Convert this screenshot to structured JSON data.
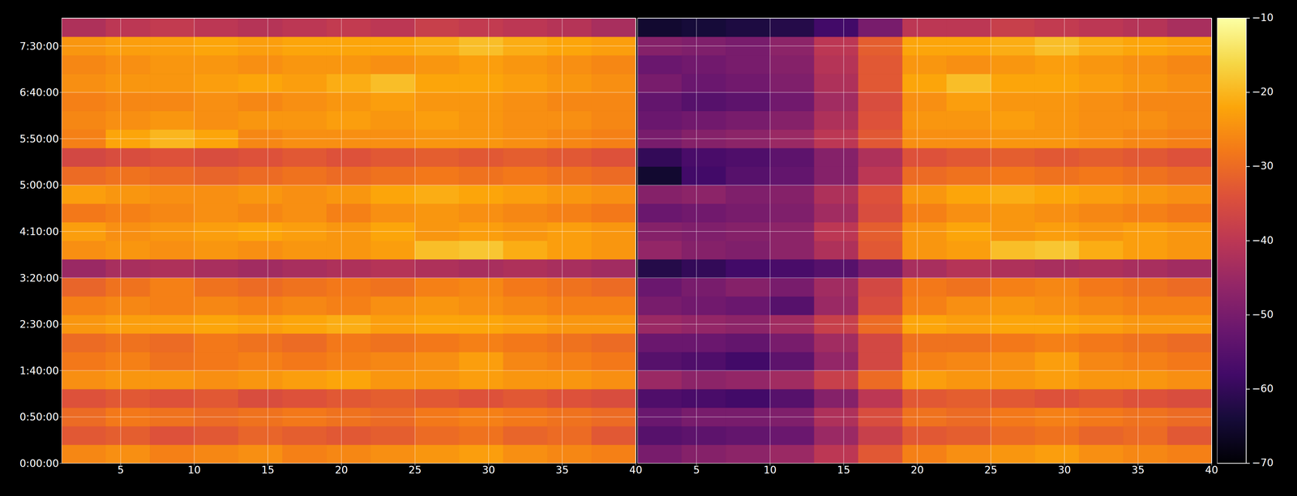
{
  "chart_data": [
    {
      "type": "heatmap",
      "x": [
        1,
        4,
        7,
        10,
        13,
        16,
        19,
        22,
        25,
        28,
        31,
        34,
        37,
        40
      ],
      "y": [
        0,
        1200,
        2400,
        3600,
        4800,
        6000,
        7200,
        8400,
        9600,
        10800,
        12000,
        13200,
        14400,
        15600,
        16800,
        18000,
        19200,
        20400,
        21600,
        22800,
        24000,
        25200,
        26400,
        27600,
        28800
      ],
      "values": [
        [
          -26,
          -25,
          -27,
          -26,
          -25,
          -27,
          -26,
          -25,
          -24,
          -23,
          -25,
          -26,
          -27
        ],
        [
          -33,
          -32,
          -34,
          -33,
          -31,
          -32,
          -33,
          -32,
          -30,
          -29,
          -31,
          -30,
          -33
        ],
        [
          -30,
          -28,
          -29,
          -30,
          -29,
          -28,
          -29,
          -30,
          -28,
          -27,
          -28,
          -29,
          -30
        ],
        [
          -34,
          -33,
          -34,
          -33,
          -35,
          -34,
          -33,
          -32,
          -33,
          -34,
          -33,
          -34,
          -35
        ],
        [
          -25,
          -24,
          -24,
          -25,
          -24,
          -23,
          -22,
          -24,
          -24,
          -23,
          -24,
          -24,
          -25
        ],
        [
          -28,
          -27,
          -29,
          -28,
          -27,
          -28,
          -27,
          -26,
          -25,
          -23,
          -26,
          -27,
          -28
        ],
        [
          -30,
          -29,
          -30,
          -28,
          -29,
          -30,
          -28,
          -29,
          -28,
          -27,
          -28,
          -29,
          -30
        ],
        [
          -24,
          -23,
          -23,
          -22,
          -23,
          -22,
          -21,
          -23,
          -22,
          -22,
          -23,
          -24,
          -24
        ],
        [
          -27,
          -26,
          -27,
          -26,
          -27,
          -26,
          -27,
          -25,
          -24,
          -25,
          -26,
          -27,
          -27
        ],
        [
          -31,
          -29,
          -27,
          -29,
          -30,
          -29,
          -28,
          -29,
          -27,
          -26,
          -28,
          -29,
          -30
        ],
        [
          -45,
          -43,
          -42,
          -43,
          -44,
          -43,
          -42,
          -41,
          -42,
          -43,
          -42,
          -43,
          -44
        ],
        [
          -25,
          -24,
          -25,
          -24,
          -25,
          -24,
          -24,
          -23,
          -19,
          -18,
          -21,
          -23,
          -24
        ],
        [
          -23,
          -25,
          -24,
          -23,
          -22,
          -23,
          -24,
          -22,
          -24,
          -23,
          -24,
          -23,
          -24
        ],
        [
          -28,
          -27,
          -26,
          -25,
          -26,
          -25,
          -27,
          -25,
          -24,
          -25,
          -26,
          -27,
          -28
        ],
        [
          -23,
          -24,
          -25,
          -25,
          -24,
          -25,
          -24,
          -22,
          -21,
          -22,
          -23,
          -24,
          -25
        ],
        [
          -30,
          -29,
          -30,
          -31,
          -30,
          -29,
          -30,
          -29,
          -28,
          -29,
          -28,
          -29,
          -30
        ],
        [
          -36,
          -35,
          -34,
          -35,
          -34,
          -33,
          -34,
          -33,
          -32,
          -33,
          -32,
          -33,
          -34
        ],
        [
          -27,
          -22,
          -20,
          -22,
          -26,
          -25,
          -25,
          -25,
          -24,
          -24,
          -25,
          -26,
          -27
        ],
        [
          -26,
          -25,
          -24,
          -25,
          -24,
          -24,
          -23,
          -24,
          -23,
          -24,
          -25,
          -25,
          -26
        ],
        [
          -27,
          -26,
          -26,
          -25,
          -26,
          -25,
          -24,
          -23,
          -24,
          -24,
          -25,
          -26,
          -26
        ],
        [
          -25,
          -24,
          -24,
          -23,
          -22,
          -23,
          -21,
          -19,
          -22,
          -22,
          -23,
          -24,
          -25
        ],
        [
          -26,
          -25,
          -24,
          -24,
          -25,
          -24,
          -24,
          -25,
          -24,
          -23,
          -24,
          -25,
          -26
        ],
        [
          -24,
          -23,
          -23,
          -22,
          -23,
          -22,
          -22,
          -22,
          -21,
          -19,
          -21,
          -22,
          -23
        ],
        [
          -42,
          -40,
          -39,
          -40,
          -41,
          -40,
          -39,
          -40,
          -38,
          -39,
          -40,
          -41,
          -43
        ]
      ],
      "xlim": [
        1,
        40
      ],
      "xticks": [
        5,
        10,
        15,
        20,
        25,
        30,
        35,
        40
      ],
      "ylim": [
        0,
        28800
      ],
      "yticks": [
        {
          "value": 0,
          "label": "0:00:00"
        },
        {
          "value": 3000,
          "label": "0:50:00"
        },
        {
          "value": 6000,
          "label": "1:40:00"
        },
        {
          "value": 9000,
          "label": "2:30:00"
        },
        {
          "value": 12000,
          "label": "3:20:00"
        },
        {
          "value": 15000,
          "label": "4:10:00"
        },
        {
          "value": 18000,
          "label": "5:00:00"
        },
        {
          "value": 21000,
          "label": "5:50:00"
        },
        {
          "value": 24000,
          "label": "6:40:00"
        },
        {
          "value": 27000,
          "label": "7:30:00"
        }
      ],
      "grid": true
    },
    {
      "type": "heatmap",
      "x": [
        1,
        4,
        7,
        10,
        13,
        16,
        19,
        22,
        25,
        28,
        31,
        34,
        37,
        40
      ],
      "y": [
        0,
        1200,
        2400,
        3600,
        4800,
        6000,
        7200,
        8400,
        9600,
        10800,
        12000,
        13200,
        14400,
        15600,
        16800,
        18000,
        19200,
        20400,
        21600,
        22800,
        24000,
        25200,
        26400,
        27600,
        28800
      ],
      "values": [
        [
          -50,
          -48,
          -47,
          -45,
          -40,
          -33,
          -27,
          -25,
          -24,
          -23,
          -25,
          -26,
          -27
        ],
        [
          -55,
          -54,
          -53,
          -52,
          -45,
          -38,
          -33,
          -32,
          -30,
          -29,
          -31,
          -30,
          -33
        ],
        [
          -52,
          -50,
          -50,
          -49,
          -42,
          -35,
          -29,
          -30,
          -28,
          -27,
          -28,
          -29,
          -30
        ],
        [
          -56,
          -57,
          -58,
          -55,
          -48,
          -40,
          -33,
          -32,
          -33,
          -34,
          -33,
          -34,
          -35
        ],
        [
          -45,
          -47,
          -46,
          -44,
          -38,
          -30,
          -23,
          -24,
          -24,
          -23,
          -24,
          -24,
          -25
        ],
        [
          -55,
          -56,
          -58,
          -54,
          -46,
          -36,
          -27,
          -26,
          -25,
          -23,
          -26,
          -27,
          -28
        ],
        [
          -52,
          -52,
          -53,
          -50,
          -44,
          -36,
          -29,
          -29,
          -28,
          -27,
          -28,
          -29,
          -30
        ],
        [
          -45,
          -46,
          -47,
          -44,
          -38,
          -30,
          -22,
          -23,
          -22,
          -22,
          -23,
          -24,
          -24
        ],
        [
          -50,
          -51,
          -52,
          -55,
          -45,
          -35,
          -27,
          -25,
          -24,
          -25,
          -26,
          -27,
          -27
        ],
        [
          -52,
          -50,
          -48,
          -50,
          -44,
          -36,
          -28,
          -29,
          -27,
          -26,
          -28,
          -29,
          -30
        ],
        [
          -62,
          -60,
          -58,
          -57,
          -55,
          -50,
          -43,
          -41,
          -42,
          -43,
          -42,
          -43,
          -44
        ],
        [
          -46,
          -48,
          -49,
          -47,
          -42,
          -33,
          -24,
          -23,
          -19,
          -18,
          -21,
          -23,
          -24
        ],
        [
          -48,
          -49,
          -48,
          -47,
          -40,
          -32,
          -24,
          -22,
          -24,
          -23,
          -24,
          -23,
          -24
        ],
        [
          -52,
          -51,
          -50,
          -49,
          -44,
          -35,
          -27,
          -25,
          -24,
          -25,
          -26,
          -27,
          -28
        ],
        [
          -48,
          -47,
          -49,
          -48,
          -42,
          -34,
          -24,
          -22,
          -21,
          -22,
          -23,
          -24,
          -25
        ],
        [
          -65,
          -58,
          -55,
          -53,
          -48,
          -40,
          -30,
          -29,
          -28,
          -29,
          -28,
          -29,
          -30
        ],
        [
          -60,
          -57,
          -56,
          -54,
          -48,
          -42,
          -34,
          -33,
          -32,
          -33,
          -32,
          -33,
          -34
        ],
        [
          -50,
          -48,
          -47,
          -45,
          -40,
          -33,
          -25,
          -25,
          -24,
          -24,
          -25,
          -26,
          -27
        ],
        [
          -52,
          -51,
          -50,
          -48,
          -42,
          -34,
          -24,
          -24,
          -23,
          -24,
          -25,
          -25,
          -26
        ],
        [
          -53,
          -55,
          -54,
          -51,
          -44,
          -35,
          -25,
          -23,
          -24,
          -24,
          -25,
          -26,
          -26
        ],
        [
          -50,
          -52,
          -51,
          -49,
          -42,
          -33,
          -22,
          -19,
          -22,
          -22,
          -23,
          -24,
          -25
        ],
        [
          -52,
          -51,
          -50,
          -48,
          -41,
          -33,
          -24,
          -25,
          -24,
          -23,
          -24,
          -25,
          -26
        ],
        [
          -48,
          -49,
          -50,
          -47,
          -40,
          -32,
          -22,
          -22,
          -21,
          -19,
          -21,
          -22,
          -23
        ],
        [
          -65,
          -64,
          -63,
          -62,
          -58,
          -50,
          -40,
          -40,
          -38,
          -39,
          -40,
          -41,
          -43
        ]
      ],
      "xlim": [
        1,
        40
      ],
      "xticks": [
        5,
        10,
        15,
        20,
        25,
        30,
        35,
        40
      ],
      "ylim": [
        0,
        28800
      ],
      "yticks": [
        0,
        3000,
        6000,
        9000,
        12000,
        15000,
        18000,
        21000,
        24000,
        27000
      ],
      "tick_labels": "x",
      "grid": true,
      "colorbar": {
        "range": [
          -70,
          -10
        ],
        "ticks": [
          {
            "value": -70,
            "label": "−70"
          },
          {
            "value": -60,
            "label": "−60"
          },
          {
            "value": -50,
            "label": "−50"
          },
          {
            "value": -40,
            "label": "−40"
          },
          {
            "value": -30,
            "label": "−30"
          },
          {
            "value": -20,
            "label": "−20"
          },
          {
            "value": -10,
            "label": "−10"
          }
        ]
      }
    }
  ]
}
